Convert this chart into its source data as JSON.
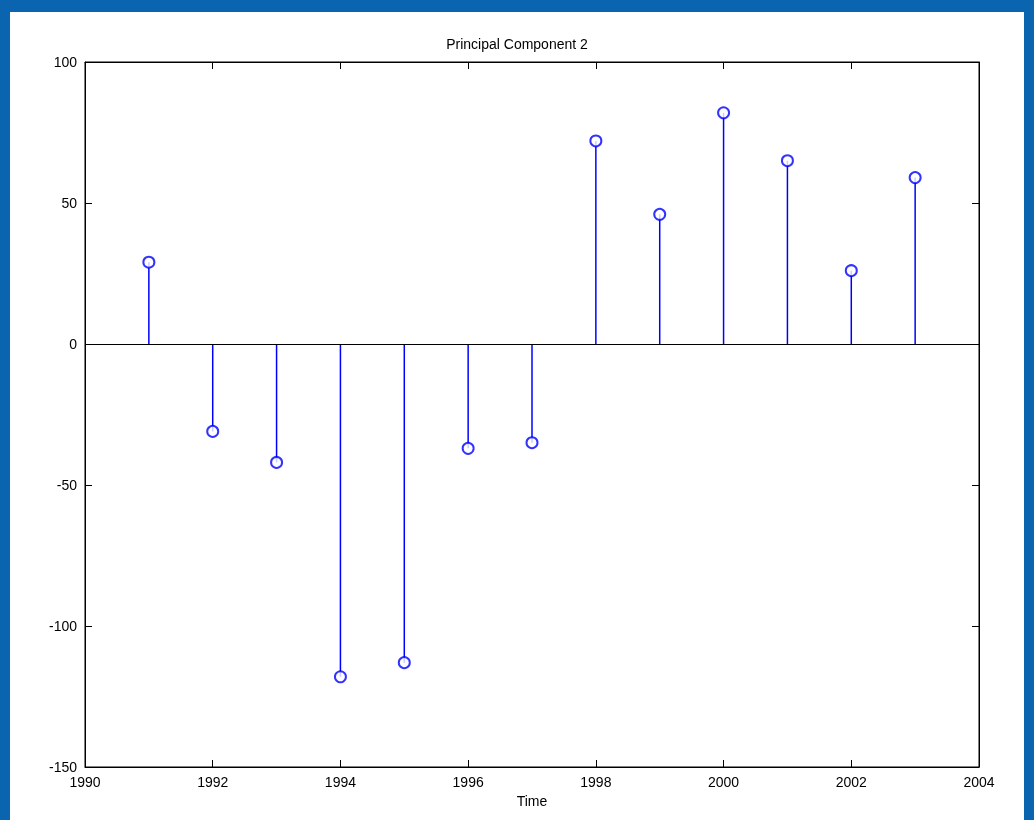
{
  "chart_data": {
    "type": "lollipop",
    "title": "Principal Component 2",
    "xlabel": "Time",
    "x": [
      1991,
      1992,
      1993,
      1994,
      1995,
      1996,
      1997,
      1998,
      1999,
      2000,
      2001,
      2002,
      2003
    ],
    "values": [
      29,
      -31,
      -42,
      -118,
      -113,
      -37,
      -35,
      72,
      46,
      82,
      65,
      26,
      59
    ],
    "color": "#0000ff",
    "marker": "circle",
    "xlim": [
      1990,
      2004
    ],
    "xticks": [
      1990,
      1992,
      1994,
      1996,
      1998,
      2000,
      2002,
      2004
    ],
    "ylim": [
      -150,
      100
    ],
    "yticks": [
      -150,
      -100,
      -50,
      0,
      50,
      100
    ],
    "ref_lines": [
      {
        "axis": "y",
        "value": 0,
        "color": "#000000"
      }
    ]
  }
}
